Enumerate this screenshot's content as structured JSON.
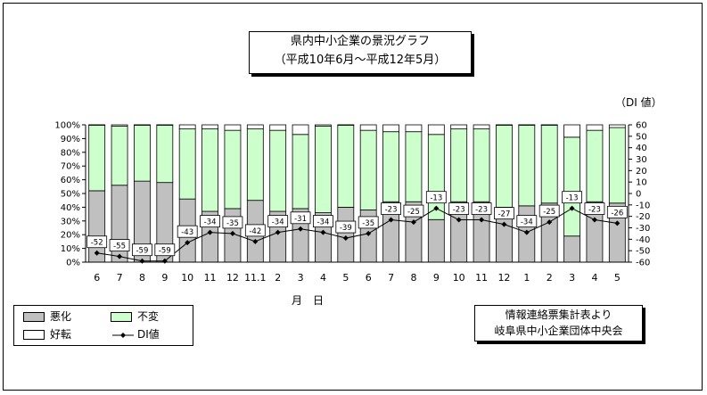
{
  "title": {
    "line1": "県内中小企業の景況グラフ",
    "line2": "（平成10年6月～平成12年5月）"
  },
  "y2_unit_label": "（DI 値）",
  "legend": {
    "bad": "悪化",
    "same": "不変",
    "good": "好転",
    "di": "DI値"
  },
  "source": {
    "line1": "情報連絡票集計表より",
    "line2": "岐阜県中小企業団体中央会"
  },
  "colors": {
    "bad": "#c0c0c0",
    "same": "#ccffcc",
    "good": "#ffffff",
    "line": "#000000"
  },
  "chart_data": {
    "type": "bar",
    "stacked": true,
    "xlabel": "月　日",
    "categories": [
      "6",
      "7",
      "8",
      "9",
      "10",
      "11",
      "12",
      "11.1",
      "2",
      "3",
      "4",
      "5",
      "6",
      "7",
      "8",
      "9",
      "10",
      "11",
      "12",
      "1",
      "2",
      "3",
      "4",
      "5"
    ],
    "y_left": {
      "ticks": [
        "0%",
        "10%",
        "20%",
        "30%",
        "40%",
        "50%",
        "60%",
        "70%",
        "80%",
        "90%",
        "100%"
      ],
      "range": [
        0,
        100
      ]
    },
    "y_right": {
      "ticks": [
        "60",
        "50",
        "40",
        "30",
        "20",
        "10",
        "0",
        "-10",
        "-20",
        "-30",
        "-40",
        "-50",
        "-60"
      ],
      "range": [
        -60,
        60
      ]
    },
    "series": [
      {
        "name": "悪化",
        "values": [
          52,
          56,
          59,
          58,
          46,
          37,
          39,
          45,
          37,
          39,
          36,
          40,
          38,
          44,
          44,
          31,
          44,
          44,
          40,
          41,
          43,
          19,
          44,
          43
        ]
      },
      {
        "name": "不変",
        "values": [
          48,
          43,
          41,
          42,
          51,
          60,
          57,
          52,
          59,
          54,
          63,
          60,
          58,
          51,
          51,
          62,
          53,
          53,
          60,
          59,
          57,
          72,
          52,
          55
        ]
      },
      {
        "name": "好転",
        "values": [
          0,
          1,
          0,
          0,
          3,
          3,
          4,
          3,
          4,
          7,
          1,
          0,
          4,
          5,
          5,
          7,
          3,
          3,
          0,
          0,
          0,
          9,
          4,
          2
        ]
      },
      {
        "name": "DI値",
        "type": "line",
        "values": [
          -52,
          -55,
          -59,
          -59,
          -43,
          -34,
          -35,
          -42,
          -34,
          -31,
          -34,
          -39,
          -35,
          -23,
          -25,
          -13,
          -23,
          -23,
          -27,
          -34,
          -25,
          -13,
          -23,
          -26
        ]
      }
    ],
    "data_labels": [
      "-52",
      "-55",
      "-59",
      "-59",
      "-43",
      "-34",
      "-35",
      "-42",
      "-34",
      "-31",
      "-34",
      "-39",
      "-35",
      "-23",
      "-25",
      "-13",
      "-23",
      "-23",
      "-27",
      "-34",
      "-25",
      "-13",
      "-23",
      "-26"
    ]
  }
}
